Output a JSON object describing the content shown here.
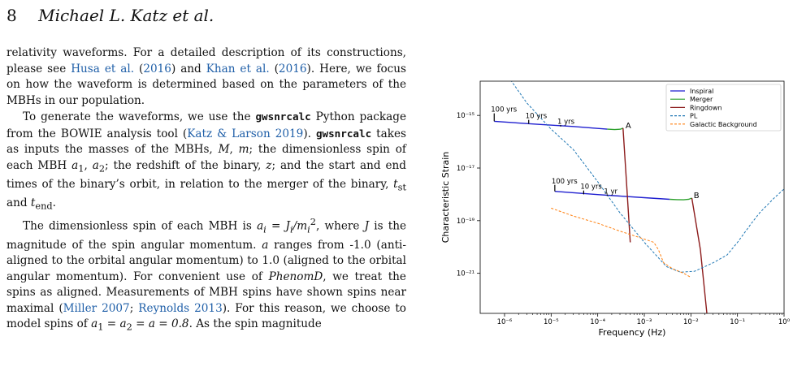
{
  "header": {
    "page_number": "8",
    "authors": "Michael L. Katz et al."
  },
  "body": {
    "p1": {
      "t1": "relativity waveforms. For a detailed description of its constructions, please see ",
      "ref1a": "Husa et al.",
      "t2": " (",
      "ref1b": "2016",
      "t3": ") and ",
      "ref2a": "Khan et al.",
      "t4": " (",
      "ref2b": "2016",
      "t5": "). Here, we focus on how the waveform is determined based on the parameters of the MBHs in our population."
    },
    "p2": {
      "t1": "To generate the waveforms, we use the ",
      "code1": "gwsnrcalc",
      "t2": " Python package from the BOWIE analysis tool (",
      "ref1": "Katz & Larson 2019",
      "t3": "). ",
      "code2": "gwsnrcalc",
      "t4": " takes as inputs the masses of the MBHs, ",
      "m1": "M",
      "t5": ", ",
      "m2": "m",
      "t6": "; the dimensionless spin of each MBH ",
      "a1": "a",
      "a1sub": "1",
      "t7": ", ",
      "a2": "a",
      "a2sub": "2",
      "t8": "; the redshift of the binary, ",
      "z": "z",
      "t9": "; and the start and end times of the binary’s orbit, in relation to the merger of the binary, ",
      "tst": "t",
      "tstsub": "st",
      "t10": " and ",
      "tend": "t",
      "tendsub": "end",
      "t11": "."
    },
    "p3": {
      "t1": "The dimensionless spin of each MBH is ",
      "eq": "a",
      "eqsub": "i",
      "eqmid": " = J",
      "eqjsub": "i",
      "eqslash": "/m",
      "eqmsub": "i",
      "eqsup": "2",
      "t2": ", where ",
      "j": "J",
      "t3": " is the magnitude of the spin angular momentum. ",
      "a": "a",
      "t4": " ranges from -1.0 (anti-aligned to the orbital angular momentum) to 1.0 (aligned to the orbital angular momentum). For convenient use of ",
      "phenomd": "PhenomD",
      "t5": ", we treat the spins as aligned. Measurements of MBH spins have shown spins near maximal (",
      "ref1": "Miller 2007",
      "t6": "; ",
      "ref2": "Reynolds 2013",
      "t7": "). For this reason, we choose to model spins of ",
      "eq2": "a",
      "eq2sub": "1",
      "eq2mid": " = a",
      "eq2sub2": "2",
      "eq2end": " = a = 0.8",
      "t8": ". As the spin magnitude"
    }
  },
  "chart_data": {
    "type": "line",
    "xscale": "log",
    "yscale": "log",
    "xlabel": "Frequency (Hz)",
    "ylabel": "Characteristic Strain",
    "xlim": [
      3e-07,
      1
    ],
    "ylim": [
      3e-23,
      2e-14
    ],
    "x_tick_labels": [
      "10⁻⁶",
      "10⁻⁵",
      "10⁻⁴",
      "10⁻³",
      "10⁻²",
      "10⁻¹",
      "10⁰"
    ],
    "x_ticks": [
      1e-06,
      1e-05,
      0.0001,
      0.001,
      0.01,
      0.1,
      1
    ],
    "y_tick_labels": [
      "10⁻¹⁵",
      "10⁻¹⁷",
      "10⁻¹⁹",
      "10⁻²¹"
    ],
    "y_ticks": [
      1e-15,
      1e-17,
      1e-19,
      1e-21
    ],
    "legend_position": "top-right",
    "colors": {
      "inspiral": "#1f1fd0",
      "merger": "#2ca02c",
      "ringdown": "#8c1c1c",
      "pl": "#1f77b4",
      "galactic": "#ff7f0e"
    },
    "series": [
      {
        "name": "Inspiral",
        "style": "solid",
        "points": [
          [
            6e-07,
            6e-16
          ],
          [
            5e-06,
            4.6e-16
          ],
          [
            3e-05,
            3.8e-16
          ],
          [
            0.0001,
            3.2e-16
          ],
          [
            0.00016,
            3e-16
          ]
        ]
      },
      {
        "name": "Inspiral",
        "style": "solid",
        "points": [
          [
            1.2e-05,
            1.3e-18
          ],
          [
            0.0001,
            9.8e-19
          ],
          [
            0.001,
            7.5e-19
          ],
          [
            0.0035,
            6.5e-19
          ]
        ]
      },
      {
        "name": "Merger",
        "style": "solid",
        "points": [
          [
            0.00016,
            3e-16
          ],
          [
            0.00023,
            2.9e-16
          ],
          [
            0.00031,
            3e-16
          ],
          [
            0.00035,
            3.3e-16
          ]
        ]
      },
      {
        "name": "Merger",
        "style": "solid",
        "points": [
          [
            0.0035,
            6.5e-19
          ],
          [
            0.005,
            6.3e-19
          ],
          [
            0.007,
            6.2e-19
          ],
          [
            0.009,
            6.5e-19
          ],
          [
            0.0105,
            7.2e-19
          ]
        ]
      },
      {
        "name": "Ringdown",
        "style": "solid",
        "points": [
          [
            0.00035,
            3.3e-16
          ],
          [
            0.00042,
            2e-18
          ],
          [
            0.0005,
            1.5e-20
          ]
        ]
      },
      {
        "name": "Ringdown",
        "style": "solid",
        "points": [
          [
            0.0105,
            7.2e-19
          ],
          [
            0.016,
            8e-21
          ],
          [
            0.022,
            3e-23
          ]
        ]
      },
      {
        "name": "PL",
        "style": "dashed",
        "points": [
          [
            1.2e-06,
            3e-14
          ],
          [
            3e-06,
            3e-15
          ],
          [
            1e-05,
            3e-16
          ],
          [
            3e-05,
            5e-17
          ],
          [
            0.0001,
            3e-18
          ],
          [
            0.0003,
            2e-19
          ],
          [
            0.001,
            1.5e-20
          ],
          [
            0.003,
            1.8e-21
          ],
          [
            0.006,
            1.1e-21
          ],
          [
            0.012,
            1.2e-21
          ],
          [
            0.03,
            2.5e-21
          ],
          [
            0.06,
            5e-21
          ],
          [
            0.1,
            1.5e-20
          ],
          [
            0.2,
            8e-20
          ],
          [
            0.3,
            2e-19
          ],
          [
            0.6,
            7e-19
          ],
          [
            1,
            1.6e-18
          ]
        ]
      },
      {
        "name": "Galactic Background",
        "style": "dashed",
        "points": [
          [
            1e-05,
            3e-19
          ],
          [
            3e-05,
            1.5e-19
          ],
          [
            0.0001,
            8e-20
          ],
          [
            0.0003,
            4e-20
          ],
          [
            0.001,
            2e-20
          ],
          [
            0.0016,
            1.5e-20
          ],
          [
            0.002,
            8e-21
          ],
          [
            0.0026,
            2.5e-21
          ],
          [
            0.004,
            1.5e-21
          ],
          [
            0.007,
            1e-21
          ],
          [
            0.01,
            7e-22
          ]
        ]
      }
    ],
    "annotations": [
      {
        "text": "100 yrs",
        "x": 6e-07,
        "y": 1.4e-15,
        "tick_top": 1.2e-15,
        "tick_bottom": 6e-16
      },
      {
        "text": "10 yrs",
        "x": 3.3e-06,
        "y": 8e-16,
        "tick_top": 6.8e-16,
        "tick_bottom": 4.8e-16
      },
      {
        "text": "1 yrs",
        "x": 1.6e-05,
        "y": 4.8e-16,
        "tick_top": 4.3e-16,
        "tick_bottom": 3.8e-16
      },
      {
        "text": "A",
        "x": 0.00038,
        "y": 3.3e-16
      },
      {
        "text": "100 yrs",
        "x": 1.2e-05,
        "y": 2.6e-18,
        "tick_top": 2.3e-18,
        "tick_bottom": 1.3e-18
      },
      {
        "text": "10 yrs",
        "x": 5e-05,
        "y": 1.65e-18,
        "tick_top": 1.4e-18,
        "tick_bottom": 1e-18
      },
      {
        "text": "1 yr",
        "x": 0.00016,
        "y": 1.05e-18,
        "tick_top": 1e-18,
        "tick_bottom": 8.8e-19
      },
      {
        "text": "B",
        "x": 0.011,
        "y": 7.2e-19
      }
    ],
    "legend": [
      "Inspiral",
      "Merger",
      "Ringdown",
      "PL",
      "Galactic Background"
    ]
  }
}
